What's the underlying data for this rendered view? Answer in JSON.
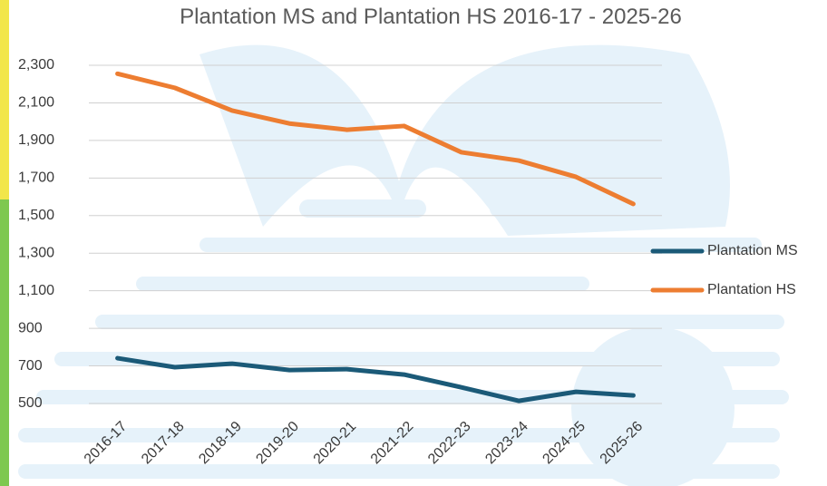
{
  "chart_data": {
    "type": "line",
    "title": "Plantation MS and Plantation HS 2016-17 - 2025-26",
    "categories": [
      "2016-17",
      "2017-18",
      "2018-19",
      "2019-20",
      "2020-21",
      "2021-22",
      "2022-23",
      "2023-24",
      "2024-25",
      "2025-26"
    ],
    "series": [
      {
        "name": "Plantation MS",
        "color": "#1b5a78",
        "values": [
          741,
          693,
          712,
          678,
          683,
          654,
          586,
          514,
          562,
          543
        ]
      },
      {
        "name": "Plantation HS",
        "color": "#ed7d31",
        "values": [
          2255,
          2180,
          2059,
          1990,
          1957,
          1977,
          1837,
          1793,
          1706,
          1562
        ]
      }
    ],
    "ylim": [
      500,
      2300
    ],
    "yticks": [
      {
        "value": 500,
        "label": "500"
      },
      {
        "value": 700,
        "label": "700"
      },
      {
        "value": 900,
        "label": "900"
      },
      {
        "value": 1100,
        "label": "1,100"
      },
      {
        "value": 1300,
        "label": "1,300"
      },
      {
        "value": 1500,
        "label": "1,500"
      },
      {
        "value": 1700,
        "label": "1,700"
      },
      {
        "value": 1900,
        "label": "1,900"
      },
      {
        "value": 2100,
        "label": "2,100"
      },
      {
        "value": 2300,
        "label": "2,300"
      }
    ],
    "grid": true,
    "legend": "right"
  }
}
